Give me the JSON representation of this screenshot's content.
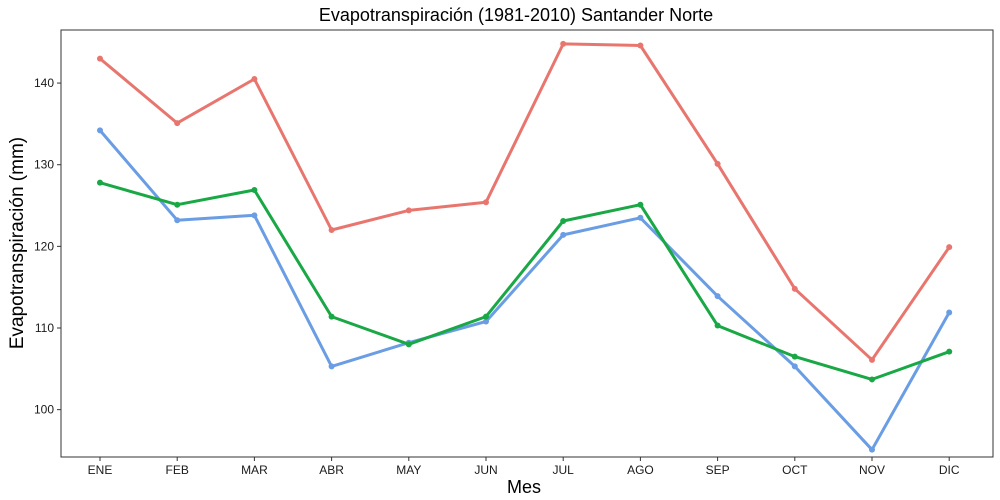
{
  "chart_data": {
    "type": "line",
    "title": "Evapotranspiración (1981-2010)  Santander Norte",
    "xlabel": "Mes",
    "ylabel": "Evapotranspiración (mm)",
    "categories": [
      "ENE",
      "FEB",
      "MAR",
      "ABR",
      "MAY",
      "JUN",
      "JUL",
      "AGO",
      "SEP",
      "OCT",
      "NOV",
      "DIC"
    ],
    "yticks": [
      100,
      110,
      120,
      130,
      140
    ],
    "ylim": [
      94.2,
      146.5
    ],
    "grid": false,
    "legend": "none",
    "series": [
      {
        "color": "#e8766f",
        "values": [
          143.0,
          135.1,
          140.5,
          122.0,
          124.4,
          125.4,
          144.8,
          144.6,
          130.1,
          114.8,
          106.1,
          119.9
        ]
      },
      {
        "color": "#6a9de4",
        "values": [
          134.2,
          123.2,
          123.8,
          105.3,
          108.2,
          110.8,
          121.4,
          123.5,
          113.9,
          105.3,
          95.1,
          111.9
        ]
      },
      {
        "color": "#19a845",
        "values": [
          127.8,
          125.1,
          126.9,
          111.4,
          108.0,
          111.4,
          123.1,
          125.1,
          110.3,
          106.5,
          103.7,
          107.1
        ]
      }
    ]
  }
}
